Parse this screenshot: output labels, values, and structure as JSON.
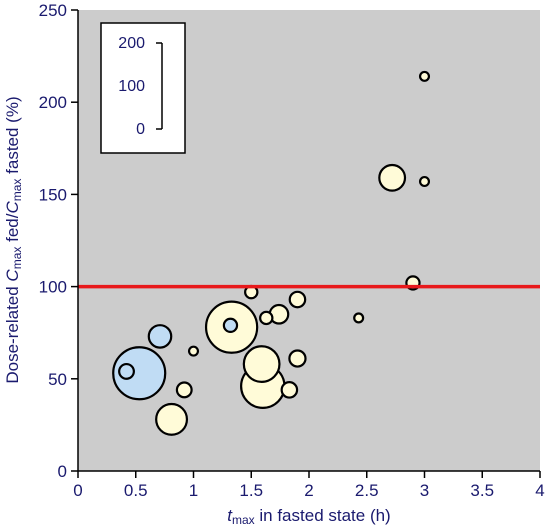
{
  "chart_data": {
    "type": "scatter",
    "title": "",
    "xlabel": {
      "prefix": "t",
      "sub": "max",
      "rest": " in fasted state (h)"
    },
    "ylabel": {
      "p1": "Dose-related ",
      "c1": "C",
      "s1": "max",
      "p2": " fed/",
      "c2": "C",
      "s2": "max",
      "p3": " fasted (%)"
    },
    "xlim": [
      0,
      4
    ],
    "ylim": [
      0,
      250
    ],
    "x_ticks": [
      "0",
      "0.5",
      "1",
      "1.5",
      "2",
      "2.5",
      "3",
      "3.5",
      "4"
    ],
    "x_tick_values": [
      0,
      0.5,
      1,
      1.5,
      2,
      2.5,
      3,
      3.5,
      4
    ],
    "y_ticks": [
      "0",
      "50",
      "100",
      "150",
      "200",
      "250"
    ],
    "y_tick_values": [
      0,
      50,
      100,
      150,
      200,
      250
    ],
    "grid": false,
    "reference_line": {
      "y": 100,
      "color": "#e8191b"
    },
    "size_legend": {
      "labels": [
        "200",
        "100",
        "0"
      ],
      "values": [
        200,
        100,
        0
      ],
      "placement": "top-left"
    },
    "colors": {
      "background": "#cccccc",
      "yellow": "#fffbd8",
      "blue": "#c0dcf4",
      "outline": "#000000",
      "text": "#1a1a6e"
    },
    "points": [
      {
        "x": 0.53,
        "y": 53,
        "size": 140,
        "color": "blue"
      },
      {
        "x": 0.42,
        "y": 54,
        "size": 8,
        "color": "blue"
      },
      {
        "x": 0.71,
        "y": 73,
        "size": 22,
        "color": "blue"
      },
      {
        "x": 0.81,
        "y": 28,
        "size": 45,
        "color": "yellow"
      },
      {
        "x": 0.92,
        "y": 44,
        "size": 8,
        "color": "yellow"
      },
      {
        "x": 1.0,
        "y": 65,
        "size": 2,
        "color": "yellow"
      },
      {
        "x": 1.33,
        "y": 78,
        "size": 135,
        "color": "yellow"
      },
      {
        "x": 1.32,
        "y": 79,
        "size": 6,
        "color": "blue"
      },
      {
        "x": 1.5,
        "y": 97,
        "size": 5,
        "color": "yellow"
      },
      {
        "x": 1.59,
        "y": 58,
        "size": 62,
        "color": "yellow"
      },
      {
        "x": 1.6,
        "y": 46,
        "size": 95,
        "color": "yellow"
      },
      {
        "x": 1.63,
        "y": 83,
        "size": 5,
        "color": "yellow"
      },
      {
        "x": 1.74,
        "y": 85,
        "size": 14,
        "color": "yellow"
      },
      {
        "x": 1.83,
        "y": 44,
        "size": 9,
        "color": "yellow"
      },
      {
        "x": 1.9,
        "y": 61,
        "size": 10,
        "color": "yellow"
      },
      {
        "x": 1.9,
        "y": 93,
        "size": 9,
        "color": "yellow"
      },
      {
        "x": 2.43,
        "y": 83,
        "size": 2,
        "color": "yellow"
      },
      {
        "x": 2.72,
        "y": 159,
        "size": 30,
        "color": "yellow"
      },
      {
        "x": 2.9,
        "y": 102,
        "size": 6,
        "color": "yellow"
      },
      {
        "x": 3.0,
        "y": 157,
        "size": 2,
        "color": "yellow"
      },
      {
        "x": 3.0,
        "y": 214,
        "size": 2,
        "color": "yellow"
      }
    ]
  }
}
